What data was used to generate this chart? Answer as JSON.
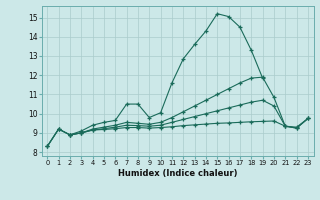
{
  "xlabel": "Humidex (Indice chaleur)",
  "bg_color": "#cce8e8",
  "grid_color": "#aacccc",
  "line_color": "#1a6b5a",
  "xlim": [
    -0.5,
    23.5
  ],
  "ylim": [
    7.8,
    15.6
  ],
  "xticks": [
    0,
    1,
    2,
    3,
    4,
    5,
    6,
    7,
    8,
    9,
    10,
    11,
    12,
    13,
    14,
    15,
    16,
    17,
    18,
    19,
    20,
    21,
    22,
    23
  ],
  "yticks": [
    8,
    9,
    10,
    11,
    12,
    13,
    14,
    15
  ],
  "line1_x": [
    0,
    1,
    2,
    3,
    4,
    5,
    6,
    7,
    8,
    9,
    10,
    11,
    12,
    13,
    14,
    15,
    16,
    17,
    18,
    19
  ],
  "line1_y": [
    8.3,
    9.2,
    8.9,
    9.1,
    9.4,
    9.55,
    9.65,
    10.5,
    10.5,
    9.8,
    10.05,
    11.6,
    12.85,
    13.6,
    14.3,
    15.2,
    15.05,
    14.5,
    13.3,
    11.85
  ],
  "line2_x": [
    0,
    1,
    2,
    3,
    4,
    5,
    6,
    7,
    8,
    9,
    10,
    11,
    12,
    13,
    14,
    15,
    16,
    17,
    18,
    19,
    20,
    21,
    22,
    23
  ],
  "line2_y": [
    8.3,
    9.2,
    8.9,
    9.0,
    9.2,
    9.3,
    9.4,
    9.55,
    9.5,
    9.45,
    9.55,
    9.8,
    10.1,
    10.4,
    10.7,
    11.0,
    11.3,
    11.6,
    11.85,
    11.9,
    10.85,
    9.35,
    9.25,
    9.75
  ],
  "line3_x": [
    0,
    1,
    2,
    3,
    4,
    5,
    6,
    7,
    8,
    9,
    10,
    11,
    12,
    13,
    14,
    15,
    16,
    17,
    18,
    19,
    20,
    21,
    22,
    23
  ],
  "line3_y": [
    8.3,
    9.2,
    8.9,
    9.0,
    9.15,
    9.22,
    9.3,
    9.4,
    9.38,
    9.35,
    9.4,
    9.55,
    9.7,
    9.85,
    10.0,
    10.15,
    10.3,
    10.45,
    10.6,
    10.7,
    10.4,
    9.35,
    9.25,
    9.75
  ],
  "line4_x": [
    2,
    3,
    4,
    5,
    6,
    7,
    8,
    9,
    10,
    11,
    12,
    13,
    14,
    15,
    16,
    17,
    18,
    19,
    20,
    21,
    22,
    23
  ],
  "line4_y": [
    8.9,
    9.0,
    9.15,
    9.18,
    9.22,
    9.28,
    9.28,
    9.25,
    9.28,
    9.32,
    9.38,
    9.42,
    9.46,
    9.5,
    9.52,
    9.55,
    9.58,
    9.6,
    9.62,
    9.35,
    9.3,
    9.75
  ]
}
